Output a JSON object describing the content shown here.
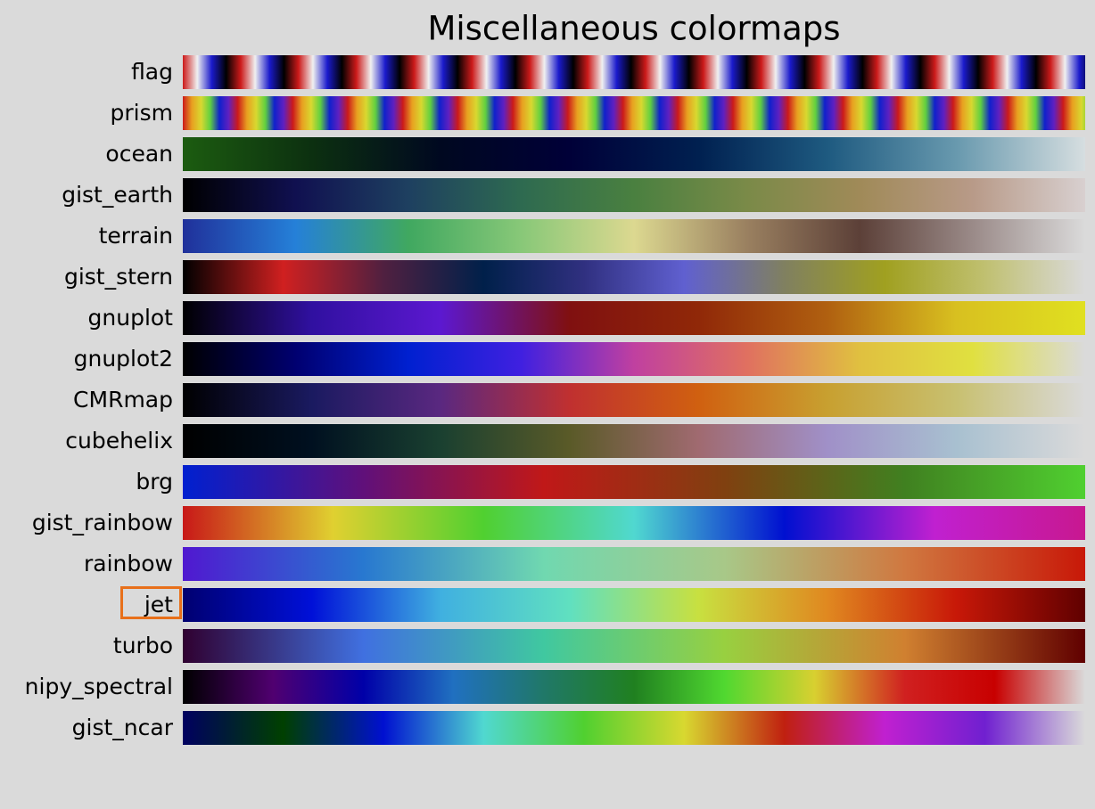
{
  "title": "Miscellaneous colormaps",
  "colormaps": [
    {
      "name": "flag",
      "repeat": 15.6,
      "stops": [
        "#cc1a1a",
        "#f0f0f0",
        "#1a1acc",
        "#000000",
        "#cc1a1a"
      ]
    },
    {
      "name": "prism",
      "repeat": 16.4,
      "stops": [
        "#cc1a1a",
        "#e8a020",
        "#d8d830",
        "#60d040",
        "#1020cc",
        "#6020c0",
        "#cc1a1a"
      ]
    },
    {
      "name": "ocean",
      "stops": [
        "#1c5c10",
        "#0c3010",
        "#000820",
        "#000038",
        "#002050",
        "#1e5a80",
        "#6899ae",
        "#d6dee0"
      ]
    },
    {
      "name": "gist_earth",
      "stops": [
        "#000000",
        "#101050",
        "#1e4060",
        "#2e6a50",
        "#4a8040",
        "#7a8a48",
        "#a08a58",
        "#b89a88",
        "#d8d0d0"
      ]
    },
    {
      "name": "terrain",
      "stops": [
        "#20309a",
        "#2580d8",
        "#40a860",
        "#88c878",
        "#dcd890",
        "#9a8060",
        "#5c4038",
        "#9a8a88",
        "#dadada"
      ]
    },
    {
      "name": "gist_stern",
      "stops": [
        "#000000",
        "#d02020",
        "#502040",
        "#00204a",
        "#303080",
        "#6060d0",
        "#808060",
        "#a0a020",
        "#c0c070",
        "#dadada"
      ]
    },
    {
      "name": "gnuplot",
      "stops": [
        "#000000",
        "#3010a0",
        "#5c18d0",
        "#801010",
        "#902808",
        "#b06010",
        "#d8c020",
        "#e0e020"
      ]
    },
    {
      "name": "gnuplot2",
      "stops": [
        "#000000",
        "#000070",
        "#0020d0",
        "#4020e0",
        "#c040a0",
        "#e07060",
        "#e0c040",
        "#e0e040",
        "#dadada"
      ]
    },
    {
      "name": "CMRmap",
      "stops": [
        "#000000",
        "#1a1a60",
        "#5a2880",
        "#c03030",
        "#d06010",
        "#c8a030",
        "#c8c070",
        "#dadada"
      ]
    },
    {
      "name": "cubehelix",
      "stops": [
        "#000000",
        "#001020",
        "#1a4030",
        "#5a5a28",
        "#a06a70",
        "#a090c8",
        "#a8c0d0",
        "#dadada"
      ]
    },
    {
      "name": "brg",
      "stops": [
        "#0020d0",
        "#60107a",
        "#c01818",
        "#804010",
        "#408020",
        "#50d030"
      ]
    },
    {
      "name": "gist_rainbow",
      "stops": [
        "#c81818",
        "#e0d030",
        "#50d030",
        "#50d8d0",
        "#0010d0",
        "#c020d0",
        "#c81890"
      ]
    },
    {
      "name": "rainbow",
      "stops": [
        "#5018d0",
        "#2878d0",
        "#70d8b0",
        "#a8c888",
        "#d07840",
        "#c81808"
      ]
    },
    {
      "name": "jet",
      "highlighted": true,
      "stops": [
        "#000070",
        "#0010d8",
        "#40b0e0",
        "#60e0c0",
        "#c8e040",
        "#e08820",
        "#c81808",
        "#600000"
      ]
    },
    {
      "name": "turbo",
      "stops": [
        "#300030",
        "#4070e0",
        "#40c8a0",
        "#98d040",
        "#d08030",
        "#600000"
      ]
    },
    {
      "name": "nipy_spectral",
      "stops": [
        "#000000",
        "#500070",
        "#0000a8",
        "#2070c0",
        "#207868",
        "#208020",
        "#50d830",
        "#d8d030",
        "#d02020",
        "#c80000",
        "#dadada"
      ]
    },
    {
      "name": "gist_ncar",
      "stops": [
        "#000060",
        "#004000",
        "#0010d0",
        "#50d8d0",
        "#50d030",
        "#d8d830",
        "#c02010",
        "#c020d0",
        "#7020d0",
        "#dadada"
      ]
    }
  ]
}
